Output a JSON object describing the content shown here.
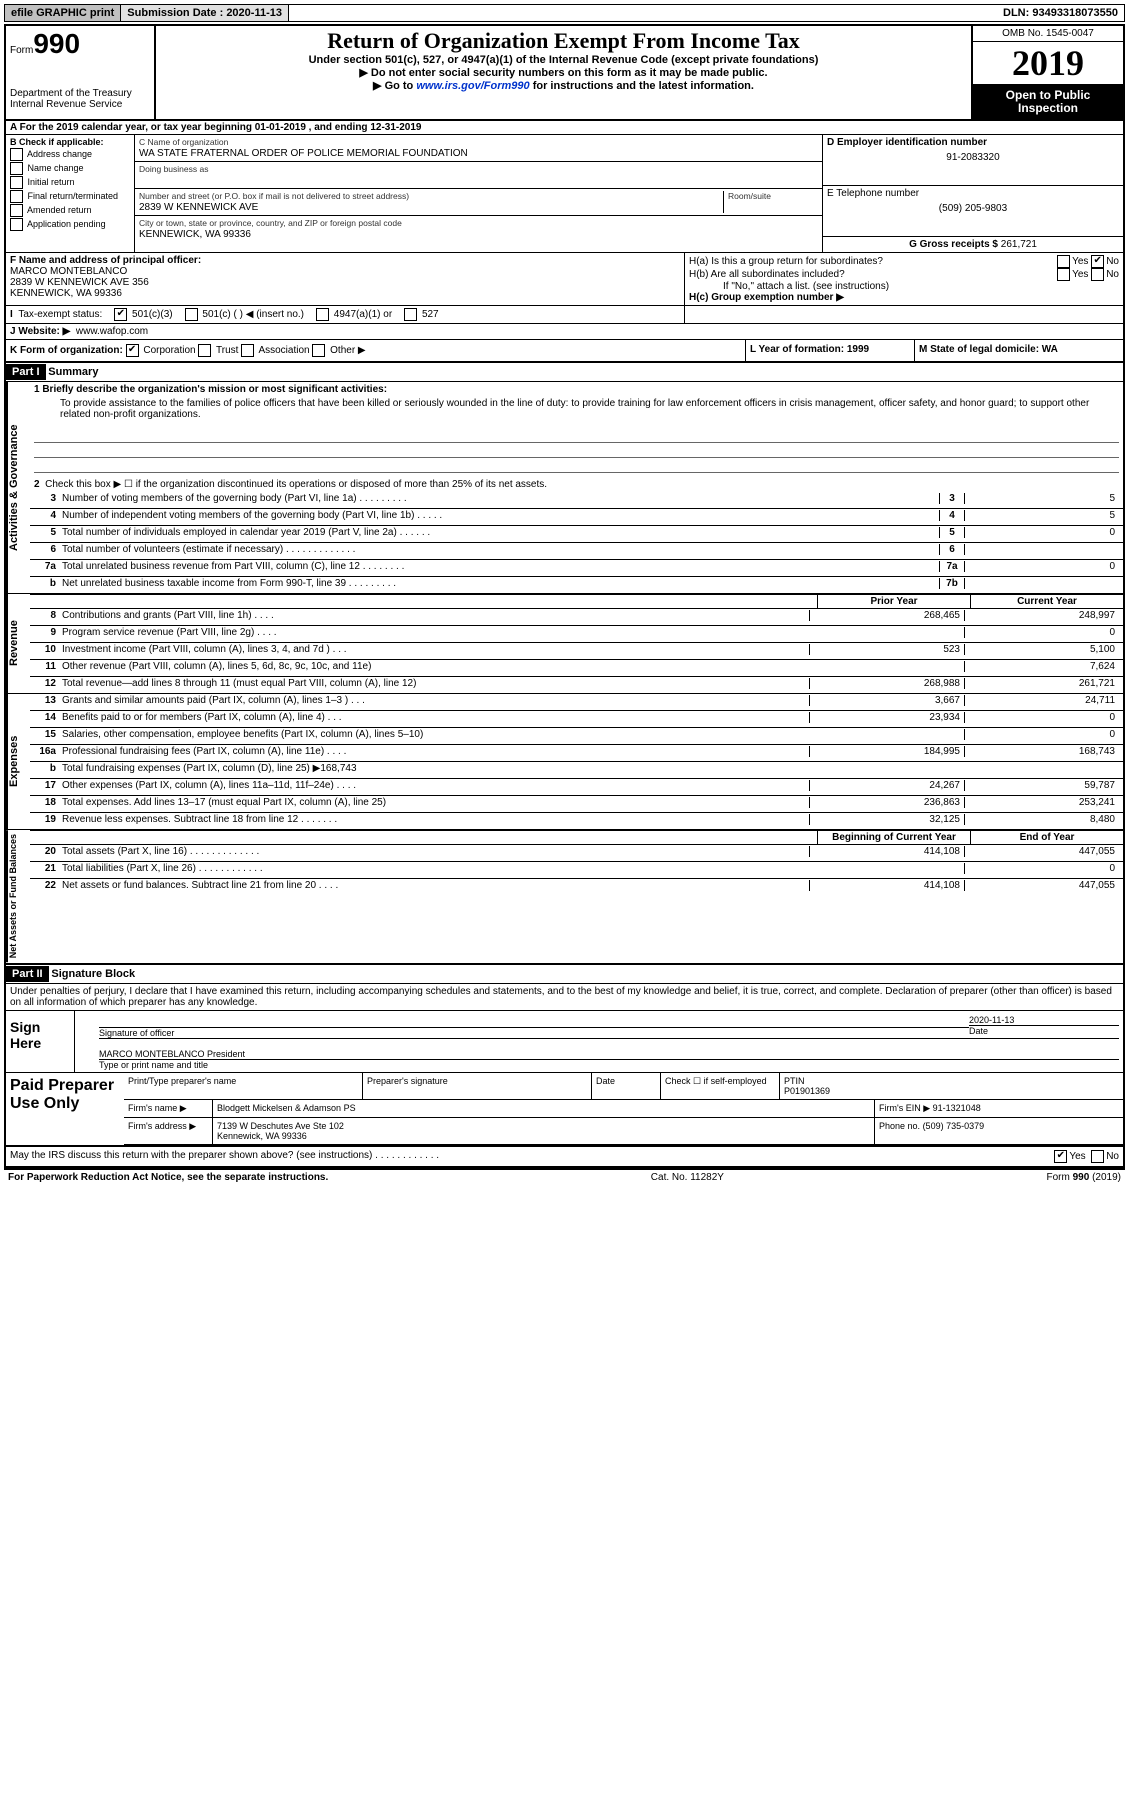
{
  "top": {
    "efile": "efile GRAPHIC print",
    "submission_label": "Submission Date : 2020-11-13",
    "dln": "DLN: 93493318073550"
  },
  "header": {
    "form_prefix": "Form",
    "form_num": "990",
    "dept": "Department of the Treasury\nInternal Revenue Service",
    "title": "Return of Organization Exempt From Income Tax",
    "sub1": "Under section 501(c), 527, or 4947(a)(1) of the Internal Revenue Code (except private foundations)",
    "sub2": "▶ Do not enter social security numbers on this form as it may be made public.",
    "sub3_pre": "▶ Go to ",
    "sub3_link": "www.irs.gov/Form990",
    "sub3_post": " for instructions and the latest information.",
    "omb": "OMB No. 1545-0047",
    "year": "2019",
    "open": "Open to Public Inspection"
  },
  "rowA": "A For the 2019 calendar year, or tax year beginning 01-01-2019   , and ending 12-31-2019",
  "colB": {
    "title": "B Check if applicable:",
    "items": [
      "Address change",
      "Name change",
      "Initial return",
      "Final return/terminated",
      "Amended return",
      "Application pending"
    ]
  },
  "colC": {
    "name_label": "C Name of organization",
    "name": "WA STATE FRATERNAL ORDER OF POLICE MEMORIAL FOUNDATION",
    "dba_label": "Doing business as",
    "addr_label": "Number and street (or P.O. box if mail is not delivered to street address)",
    "room_label": "Room/suite",
    "addr": "2839 W KENNEWICK AVE",
    "city_label": "City or town, state or province, country, and ZIP or foreign postal code",
    "city": "KENNEWICK, WA  99336"
  },
  "colD": {
    "ein_label": "D Employer identification number",
    "ein": "91-2083320",
    "phone_label": "E Telephone number",
    "phone": "(509) 205-9803",
    "gross_label": "G Gross receipts $",
    "gross": "261,721"
  },
  "rowF": {
    "label": "F  Name and address of principal officer:",
    "name": "MARCO MONTEBLANCO",
    "addr": "2839 W KENNEWICK AVE 356",
    "city": "KENNEWICK, WA  99336"
  },
  "rowH": {
    "a": "H(a)  Is this a group return for subordinates?",
    "b": "H(b)  Are all subordinates included?",
    "note": "If \"No,\" attach a list. (see instructions)",
    "c": "H(c)  Group exemption number ▶",
    "yes": "Yes",
    "no": "No"
  },
  "rowI": {
    "label": "Tax-exempt status:",
    "opts": [
      "501(c)(3)",
      "501(c) (  ) ◀ (insert no.)",
      "4947(a)(1) or",
      "527"
    ]
  },
  "rowJ": {
    "label": "J   Website: ▶",
    "val": "www.wafop.com"
  },
  "rowK": {
    "label": "K Form of organization:",
    "opts": [
      "Corporation",
      "Trust",
      "Association",
      "Other ▶"
    ],
    "L": "L Year of formation: 1999",
    "M": "M State of legal domicile: WA"
  },
  "partI": {
    "header": "Part I",
    "title": "Summary",
    "l1_label": "1  Briefly describe the organization's mission or most significant activities:",
    "l1_text": "To provide assistance to the families of police officers that have been killed or seriously wounded in the line of duty: to provide training for law enforcement officers in crisis management, officer safety, and honor guard; to support other related non-profit organizations.",
    "l2": "Check this box ▶ ☐  if the organization discontinued its operations or disposed of more than 25% of its net assets.",
    "tabs": {
      "ag": "Activities & Governance",
      "rev": "Revenue",
      "exp": "Expenses",
      "net": "Net Assets or Fund Balances"
    },
    "lines_ag": [
      {
        "n": "3",
        "d": "Number of voting members of the governing body (Part VI, line 1a)  .   .   .   .   .   .   .   .   .",
        "b": "3",
        "v": "5"
      },
      {
        "n": "4",
        "d": "Number of independent voting members of the governing body (Part VI, line 1b)  .   .   .   .   .",
        "b": "4",
        "v": "5"
      },
      {
        "n": "5",
        "d": "Total number of individuals employed in calendar year 2019 (Part V, line 2a)  .   .   .   .   .   .",
        "b": "5",
        "v": "0"
      },
      {
        "n": "6",
        "d": "Total number of volunteers (estimate if necessary)   .   .   .   .   .   .   .   .   .   .   .   .   .",
        "b": "6",
        "v": ""
      },
      {
        "n": "7a",
        "d": "Total unrelated business revenue from Part VIII, column (C), line 12   .   .   .   .   .   .   .   .",
        "b": "7a",
        "v": "0"
      },
      {
        "n": "b",
        "d": "Net unrelated business taxable income from Form 990-T, line 39   .   .   .   .   .   .   .   .   .",
        "b": "7b",
        "v": ""
      }
    ],
    "py_label": "Prior Year",
    "cy_label": "Current Year",
    "lines_rev": [
      {
        "n": "8",
        "d": "Contributions and grants (Part VIII, line 1h)   .   .   .   .",
        "py": "268,465",
        "cy": "248,997"
      },
      {
        "n": "9",
        "d": "Program service revenue (Part VIII, line 2g)   .   .   .   .",
        "py": "",
        "cy": "0"
      },
      {
        "n": "10",
        "d": "Investment income (Part VIII, column (A), lines 3, 4, and 7d )   .   .   .",
        "py": "523",
        "cy": "5,100"
      },
      {
        "n": "11",
        "d": "Other revenue (Part VIII, column (A), lines 5, 6d, 8c, 9c, 10c, and 11e)",
        "py": "",
        "cy": "7,624"
      },
      {
        "n": "12",
        "d": "Total revenue—add lines 8 through 11 (must equal Part VIII, column (A), line 12)",
        "py": "268,988",
        "cy": "261,721"
      }
    ],
    "lines_exp": [
      {
        "n": "13",
        "d": "Grants and similar amounts paid (Part IX, column (A), lines 1–3 )   .   .   .",
        "py": "3,667",
        "cy": "24,711"
      },
      {
        "n": "14",
        "d": "Benefits paid to or for members (Part IX, column (A), line 4)   .   .   .",
        "py": "23,934",
        "cy": "0"
      },
      {
        "n": "15",
        "d": "Salaries, other compensation, employee benefits (Part IX, column (A), lines 5–10)",
        "py": "",
        "cy": "0"
      },
      {
        "n": "16a",
        "d": "Professional fundraising fees (Part IX, column (A), line 11e)   .   .   .   .",
        "py": "184,995",
        "cy": "168,743"
      },
      {
        "n": "b",
        "d": "Total fundraising expenses (Part IX, column (D), line 25) ▶168,743",
        "py": "GRAY",
        "cy": "GRAY"
      },
      {
        "n": "17",
        "d": "Other expenses (Part IX, column (A), lines 11a–11d, 11f–24e)   .   .   .   .",
        "py": "24,267",
        "cy": "59,787"
      },
      {
        "n": "18",
        "d": "Total expenses. Add lines 13–17 (must equal Part IX, column (A), line 25)",
        "py": "236,863",
        "cy": "253,241"
      },
      {
        "n": "19",
        "d": "Revenue less expenses. Subtract line 18 from line 12  .   .   .   .   .   .   .",
        "py": "32,125",
        "cy": "8,480"
      }
    ],
    "net_py": "Beginning of Current Year",
    "net_cy": "End of Year",
    "lines_net": [
      {
        "n": "20",
        "d": "Total assets (Part X, line 16)  .   .   .   .   .   .   .   .   .   .   .   .   .",
        "py": "414,108",
        "cy": "447,055"
      },
      {
        "n": "21",
        "d": "Total liabilities (Part X, line 26)  .   .   .   .   .   .   .   .   .   .   .   .",
        "py": "",
        "cy": "0"
      },
      {
        "n": "22",
        "d": "Net assets or fund balances. Subtract line 21 from line 20   .   .   .   .",
        "py": "414,108",
        "cy": "447,055"
      }
    ]
  },
  "partII": {
    "header": "Part II",
    "title": "Signature Block",
    "decl": "Under penalties of perjury, I declare that I have examined this return, including accompanying schedules and statements, and to the best of my knowledge and belief, it is true, correct, and complete. Declaration of preparer (other than officer) is based on all information of which preparer has any knowledge.",
    "sign_here": "Sign Here",
    "sig_officer": "Signature of officer",
    "sig_date": "Date",
    "sig_date_val": "2020-11-13",
    "officer_name": "MARCO MONTEBLANCO President",
    "type_name": "Type or print name and title",
    "paid": "Paid Preparer Use Only",
    "print_name": "Print/Type preparer's name",
    "prep_sig": "Preparer's signature",
    "date": "Date",
    "check": "Check ☐ if self-employed",
    "ptin_label": "PTIN",
    "ptin": "P01901369",
    "firm_name_label": "Firm's name   ▶",
    "firm_name": "Blodgett Mickelsen & Adamson PS",
    "firm_ein_label": "Firm's EIN ▶",
    "firm_ein": "91-1321048",
    "firm_addr_label": "Firm's address ▶",
    "firm_addr": "7139 W Deschutes Ave Ste 102",
    "firm_city": "Kennewick, WA  99336",
    "phone_label": "Phone no.",
    "phone": "(509) 735-0379",
    "discuss": "May the IRS discuss this return with the preparer shown above? (see instructions)   .   .   .   .   .   .   .   .   .   .   .   .",
    "yes": "Yes",
    "no": "No"
  },
  "footer": {
    "left": "For Paperwork Reduction Act Notice, see the separate instructions.",
    "mid": "Cat. No. 11282Y",
    "right": "Form 990 (2019)"
  }
}
